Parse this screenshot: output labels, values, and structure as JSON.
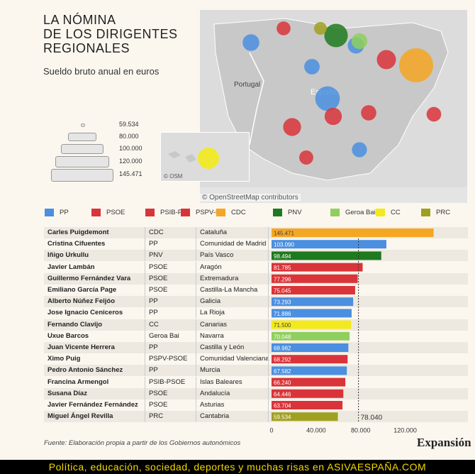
{
  "title": "LA NÓMINA\nDE LOS DIRIGENTES\nREGIONALES",
  "subtitle": "Sueldo bruto anual en euros",
  "map": {
    "labels": [
      {
        "text": "Portugal"
      },
      {
        "text": "España"
      }
    ],
    "attribution": "© OpenStreetMap contributors",
    "inset_attribution": "© OSM"
  },
  "size_legend": [
    "59.534",
    "80.000",
    "100.000",
    "120.000",
    "145.471"
  ],
  "colors": {
    "PP": "#4a8fe0",
    "PSOE": "#d9343a",
    "PSIB-PSOE": "#d9343a",
    "PSPV-PSOE": "#d9343a",
    "CDC": "#f5a623",
    "PNV": "#1e7a1e",
    "Geroa Bai": "#8fcf5e",
    "CC": "#f2ea1c",
    "PRC": "#a0a020"
  },
  "legend": [
    {
      "label": "PP",
      "color": "#4a8fe0"
    },
    {
      "label": "PSOE",
      "color": "#d9343a"
    },
    {
      "label": "PSIB-P...",
      "color": "#d9343a"
    },
    {
      "label": "PSPV-P...",
      "color": "#d9343a"
    },
    {
      "label": "CDC",
      "color": "#f5a623"
    },
    {
      "label": "PNV",
      "color": "#1e7a1e"
    },
    {
      "label": "Geroa Bai",
      "color": "#8fcf5e"
    },
    {
      "label": "CC",
      "color": "#f2ea1c"
    },
    {
      "label": "PRC",
      "color": "#a0a020"
    }
  ],
  "chart_data": {
    "type": "bar",
    "orientation": "horizontal",
    "xlim": [
      0,
      140000
    ],
    "ticks": [
      0,
      40000,
      80000,
      120000
    ],
    "tick_labels": [
      "0",
      "40.000",
      "80.000",
      "120.000"
    ],
    "reference_line": {
      "value": 78040,
      "label": "78.040"
    },
    "rows": [
      {
        "name": "Carles Puigdemont",
        "party": "CDC",
        "region": "Cataluña",
        "value": 145471,
        "label": "145.471"
      },
      {
        "name": "Cristina Cifuentes",
        "party": "PP",
        "region": "Comunidad de Madrid",
        "value": 103090,
        "label": "103.090"
      },
      {
        "name": "Iñigo Urkullu",
        "party": "PNV",
        "region": "País Vasco",
        "value": 98494,
        "label": "98.494"
      },
      {
        "name": "Javier Lambán",
        "party": "PSOE",
        "region": "Aragón",
        "value": 81785,
        "label": "81.785"
      },
      {
        "name": "Guillermo Fernández Vara",
        "party": "PSOE",
        "region": "Extremadura",
        "value": 77296,
        "label": "77.296"
      },
      {
        "name": "Emiliano García Page",
        "party": "PSOE",
        "region": "Castilla-La Mancha",
        "value": 75045,
        "label": "75.045"
      },
      {
        "name": "Alberto Núñez Feijóo",
        "party": "PP",
        "region": "Galicia",
        "value": 73293,
        "label": "73.293"
      },
      {
        "name": "Jose Ignacio Ceniceros",
        "party": "PP",
        "region": "La Rioja",
        "value": 71886,
        "label": "71.886"
      },
      {
        "name": "Fernando Clavijo",
        "party": "CC",
        "region": "Canarias",
        "value": 71500,
        "label": "71.500"
      },
      {
        "name": "Uxue Barcos",
        "party": "Geroa Bai",
        "region": "Navarra",
        "value": 70048,
        "label": "70.048"
      },
      {
        "name": "Juan Vicente Herrera",
        "party": "PP",
        "region": "Castilla y León",
        "value": 68982,
        "label": "68.982"
      },
      {
        "name": "Ximo Puig",
        "party": "PSPV-PSOE",
        "region": "Comunidad Valenciana",
        "value": 68292,
        "label": "68.292"
      },
      {
        "name": "Pedro Antonio Sánchez",
        "party": "PP",
        "region": "Murcia",
        "value": 67582,
        "label": "67.582"
      },
      {
        "name": "Francina Armengol",
        "party": "PSIB-PSOE",
        "region": "Islas Baleares",
        "value": 66240,
        "label": "66.240"
      },
      {
        "name": "Susana Díaz",
        "party": "PSOE",
        "region": "Andalucía",
        "value": 64446,
        "label": "64.446"
      },
      {
        "name": "Javier Fernández Fernández",
        "party": "PSOE",
        "region": "Asturias",
        "value": 63704,
        "label": "63.704"
      },
      {
        "name": "Miguel Ángel Revilla",
        "party": "PRC",
        "region": "Cantabria",
        "value": 59534,
        "label": "59.534"
      }
    ]
  },
  "source": "Fuente: Elaboración propia a partir de los Gobiernos autonómicos",
  "brand": "Expansión",
  "footer": "Política, educación, sociedad, deportes y muchas risas en ASIVAESPAÑA.COM"
}
